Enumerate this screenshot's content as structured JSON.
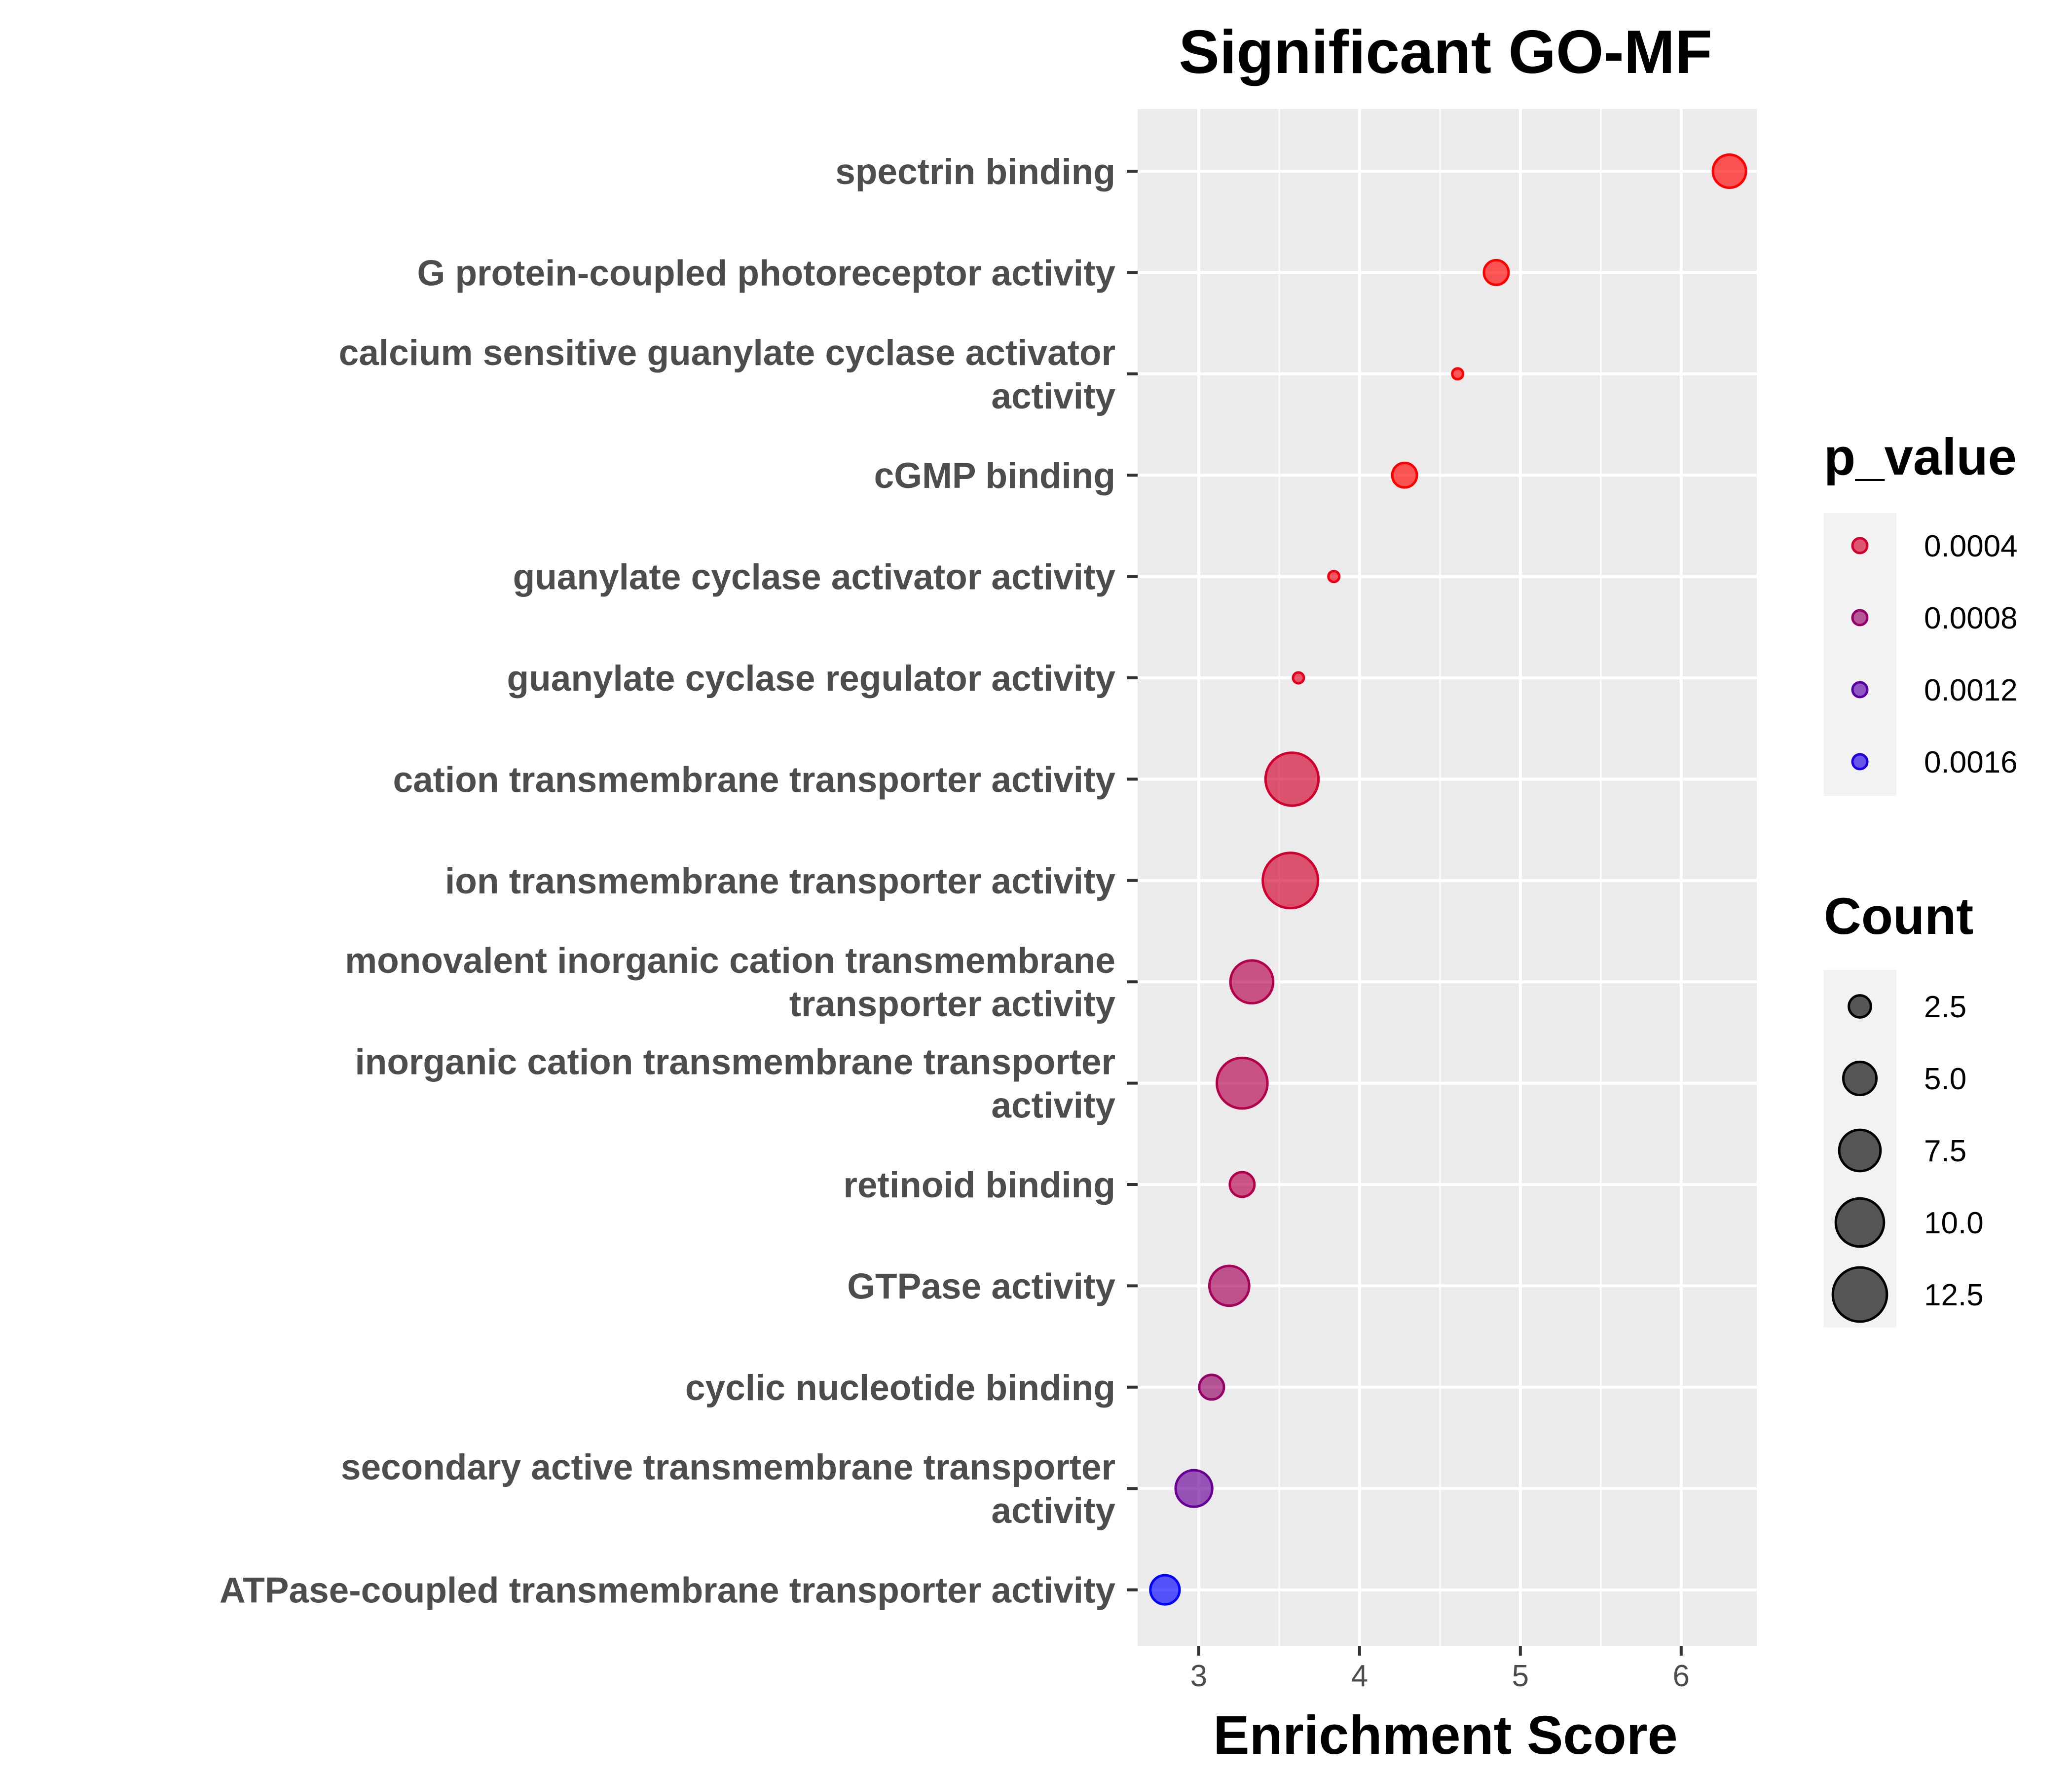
{
  "chart_data": {
    "type": "scatter",
    "title": "Significant GO-MF",
    "xlabel": "Enrichment Score",
    "ylabel": "",
    "xlim": [
      2.62,
      6.47
    ],
    "xticks": [
      3,
      4,
      5,
      6
    ],
    "grid": true,
    "color_scale": {
      "name": "p_value",
      "low_color": "#ff0000",
      "high_color": "#0000ff",
      "domain": [
        0.0001,
        0.0018
      ],
      "legend_values": [
        0.0004,
        0.0008,
        0.0012,
        0.0016
      ],
      "legend_labels": [
        "0.0004",
        "0.0008",
        "0.0012",
        "0.0016"
      ]
    },
    "size_scale": {
      "name": "Count",
      "domain": [
        1,
        13
      ],
      "legend_values": [
        2.5,
        5.0,
        7.5,
        10.0,
        12.5
      ],
      "legend_labels": [
        "2.5",
        "5.0",
        "7.5",
        "10.0",
        "12.5"
      ]
    },
    "points": [
      {
        "label": "spectrin binding",
        "label_lines": [
          "spectrin binding"
        ],
        "x": 6.3,
        "count": 5,
        "p_value": 0.0001
      },
      {
        "label": "G protein-coupled photoreceptor activity",
        "label_lines": [
          "G protein-coupled photoreceptor activity"
        ],
        "x": 4.85,
        "count": 3,
        "p_value": 0.0001
      },
      {
        "label": "calcium sensitive guanylate cyclase activator activity",
        "label_lines": [
          "calcium sensitive guanylate cyclase activator",
          "activity"
        ],
        "x": 4.61,
        "count": 1,
        "p_value": 0.0001
      },
      {
        "label": "cGMP binding",
        "label_lines": [
          "cGMP binding"
        ],
        "x": 4.28,
        "count": 3,
        "p_value": 0.0001
      },
      {
        "label": "guanylate cyclase activator activity",
        "label_lines": [
          "guanylate cyclase activator activity"
        ],
        "x": 3.84,
        "count": 1,
        "p_value": 0.0002
      },
      {
        "label": "guanylate cyclase regulator activity",
        "label_lines": [
          "guanylate cyclase regulator activity"
        ],
        "x": 3.62,
        "count": 1,
        "p_value": 0.0003
      },
      {
        "label": "cation transmembrane transporter activity",
        "label_lines": [
          "cation transmembrane transporter activity"
        ],
        "x": 3.58,
        "count": 12,
        "p_value": 0.0004
      },
      {
        "label": "ion transmembrane transporter activity",
        "label_lines": [
          "ion transmembrane transporter activity"
        ],
        "x": 3.57,
        "count": 13,
        "p_value": 0.0004
      },
      {
        "label": "monovalent inorganic cation transmembrane transporter activity",
        "label_lines": [
          "monovalent inorganic cation transmembrane",
          "transporter activity"
        ],
        "x": 3.33,
        "count": 8,
        "p_value": 0.0006
      },
      {
        "label": "inorganic cation transmembrane transporter activity",
        "label_lines": [
          "inorganic cation transmembrane transporter",
          "activity"
        ],
        "x": 3.27,
        "count": 11,
        "p_value": 0.0006
      },
      {
        "label": "retinoid binding",
        "label_lines": [
          "retinoid binding"
        ],
        "x": 3.27,
        "count": 3,
        "p_value": 0.0006
      },
      {
        "label": "GTPase activity",
        "label_lines": [
          "GTPase activity"
        ],
        "x": 3.19,
        "count": 7,
        "p_value": 0.0007
      },
      {
        "label": "cyclic nucleotide binding",
        "label_lines": [
          "cyclic nucleotide binding"
        ],
        "x": 3.08,
        "count": 3,
        "p_value": 0.0008
      },
      {
        "label": "secondary active transmembrane transporter activity",
        "label_lines": [
          "secondary active transmembrane transporter",
          "activity"
        ],
        "x": 2.97,
        "count": 6,
        "p_value": 0.0011
      },
      {
        "label": "ATPase-coupled transmembrane transporter activity",
        "label_lines": [
          "ATPase-coupled transmembrane transporter activity"
        ],
        "x": 2.79,
        "count": 4,
        "p_value": 0.0018
      }
    ]
  }
}
